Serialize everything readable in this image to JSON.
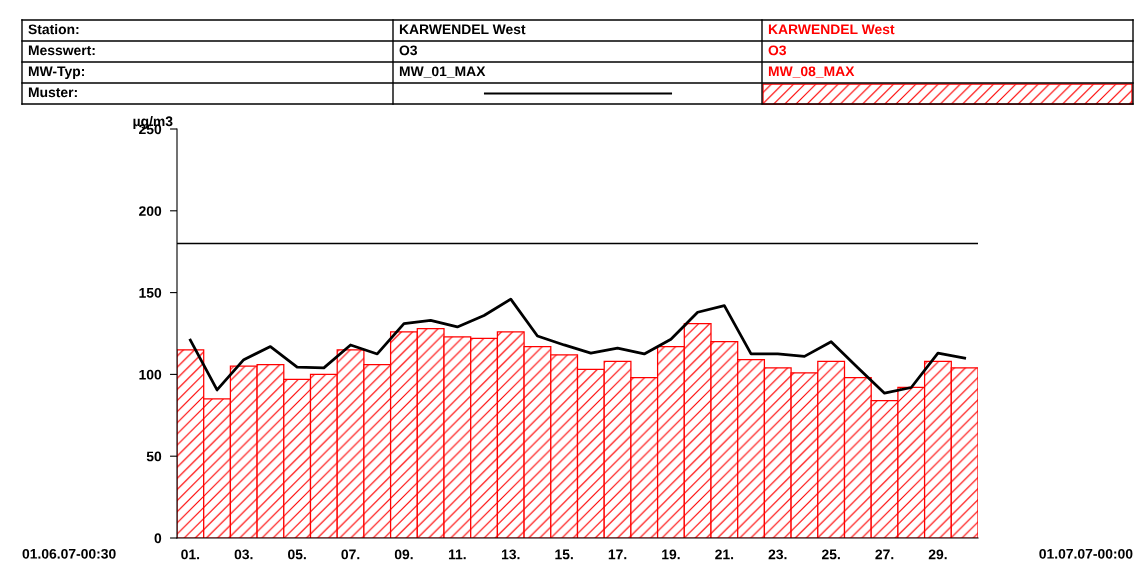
{
  "chart_data": {
    "type": "bar",
    "ylabel": "µg/m3",
    "categories": [
      "01.",
      null,
      "03.",
      null,
      "05.",
      null,
      "07.",
      null,
      "09.",
      null,
      "11.",
      null,
      "13.",
      null,
      "15.",
      null,
      "17.",
      null,
      "19.",
      null,
      "21.",
      null,
      "23.",
      null,
      "25.",
      null,
      "27.",
      null,
      "29.",
      null
    ],
    "series": [
      {
        "name": "MW_08_MAX",
        "type": "bar",
        "color": "#ff0000",
        "values": [
          115,
          85,
          105,
          106,
          97,
          100,
          115,
          106,
          126,
          128,
          123,
          122,
          126,
          117,
          112,
          103,
          108,
          98,
          117,
          131,
          120,
          109,
          104,
          101,
          108,
          98,
          84,
          92,
          108,
          104
        ]
      },
      {
        "name": "MW_01_MAX",
        "type": "line",
        "color": "#000000",
        "values": [
          121,
          90.5,
          109,
          117,
          104.5,
          104,
          118,
          112.5,
          131,
          133,
          129,
          136,
          146,
          123.5,
          118,
          113,
          116,
          112.5,
          121.5,
          138,
          142,
          112.5,
          112.5,
          111,
          120,
          104,
          88.5,
          92,
          113,
          110
        ]
      }
    ],
    "ylim": [
      0,
      250
    ],
    "yticks": [
      0,
      50,
      100,
      150,
      200,
      250
    ],
    "ref_lines": [
      {
        "axis": "y",
        "value": 180,
        "color": "#000000"
      }
    ],
    "grid": false,
    "legend": "top",
    "annotations": [
      "Station:",
      "Messwert:",
      "MW-Typ:",
      "Muster:",
      "KARWENDEL West",
      "O3",
      "KARWENDEL West",
      "O3",
      "01.06.07-00:30",
      "01.07.07-00:00"
    ]
  }
}
